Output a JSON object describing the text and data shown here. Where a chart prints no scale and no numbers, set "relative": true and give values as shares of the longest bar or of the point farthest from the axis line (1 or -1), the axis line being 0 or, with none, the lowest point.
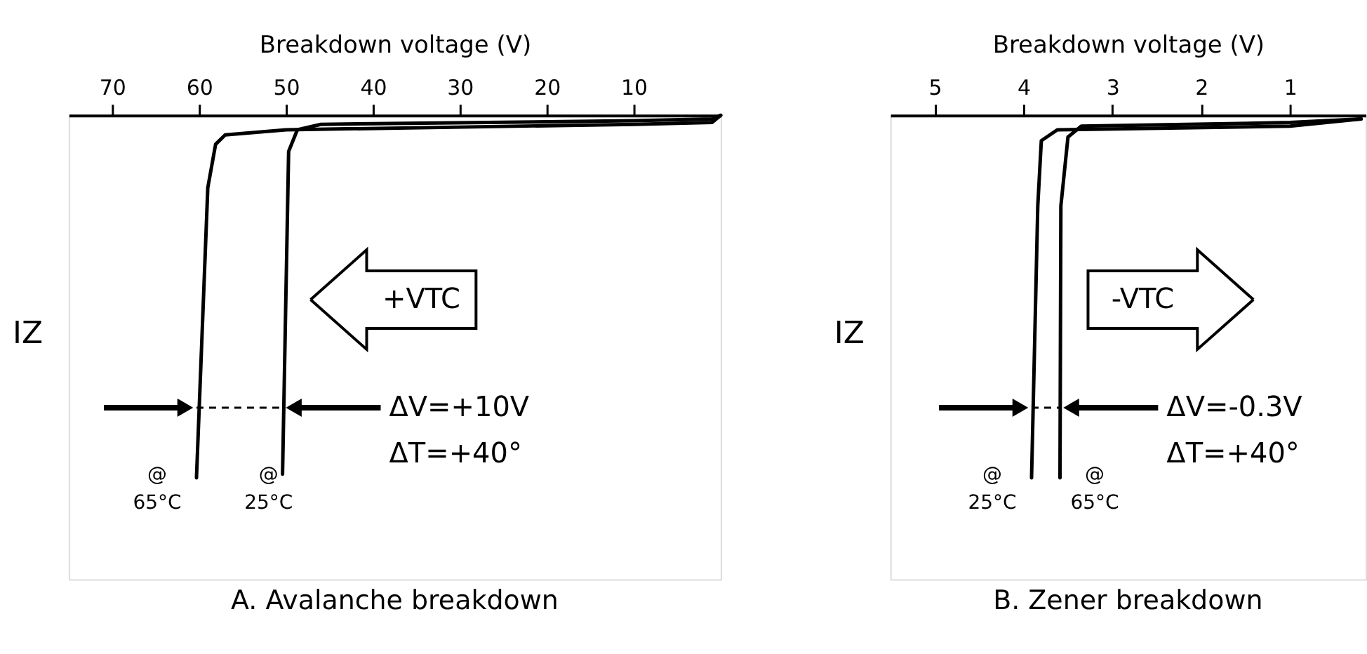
{
  "chart_data": [
    {
      "type": "line",
      "title": "A. Avalanche breakdown",
      "xlabel": "Breakdown voltage (V)",
      "ylabel": "IZ",
      "relative": true,
      "tick_labels": "x",
      "marker": "none",
      "line_style": "solid",
      "xlim": [
        75,
        0
      ],
      "xticks": [
        70,
        60,
        50,
        40,
        30,
        20,
        10
      ],
      "series": [
        {
          "color": "#000000",
          "x": [
            50.4,
            49.7,
            48.7,
            46,
            10,
            1,
            0
          ],
          "values": [
            -0.99,
            -0.1,
            -0.04,
            -0.025,
            -0.015,
            -0.01,
            0
          ]
        },
        {
          "color": "#000000",
          "x": [
            60.3,
            59.0,
            58.1,
            57,
            50,
            10,
            1,
            0
          ],
          "values": [
            -1.0,
            -0.2,
            -0.08,
            -0.054,
            -0.04,
            -0.025,
            -0.02,
            0
          ]
        }
      ],
      "annotations": [
        "+VTC",
        "ΔV=+10V",
        "ΔT=+40°",
        "@\n65°C",
        "@\n25°C"
      ]
    },
    {
      "type": "line",
      "title": "B. Zener breakdown",
      "xlabel": "Breakdown voltage (V)",
      "ylabel": "IZ",
      "relative": true,
      "tick_labels": "x",
      "marker": "none",
      "line_style": "solid",
      "xlim": [
        5.5,
        0.15
      ],
      "xticks": [
        5,
        4,
        3,
        2,
        1
      ],
      "series": [
        {
          "color": "#000000",
          "x": [
            3.91,
            3.84,
            3.8,
            3.62,
            1,
            0.2
          ],
          "values": [
            -1.0,
            -0.25,
            -0.07,
            -0.04,
            -0.03,
            -0.01
          ]
        },
        {
          "color": "#000000",
          "x": [
            3.59,
            3.58,
            3.5,
            3.35,
            1,
            0.2
          ],
          "values": [
            -1.0,
            -0.25,
            -0.06,
            -0.03,
            -0.02,
            -0.01
          ]
        }
      ],
      "annotations": [
        "-VTC",
        "ΔV=-0.3V",
        "ΔT=+40°",
        "@\n25°C",
        "@\n65°C"
      ]
    }
  ]
}
